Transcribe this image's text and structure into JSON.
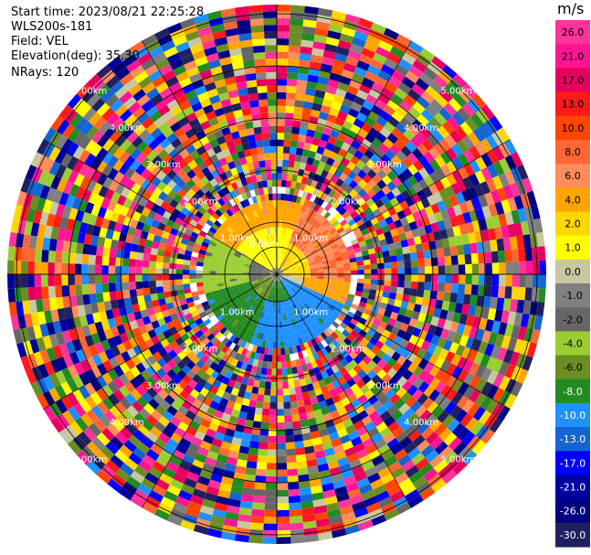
{
  "info": {
    "start_time": "Start time: 2023/08/21 22:25:28",
    "instrument": "WLS200s-181",
    "field": "Field: VEL",
    "elevation": "Elevation(deg): 35.30",
    "nrays": "NRays: 120"
  },
  "chart_data": {
    "type": "ppi-polar-heatmap",
    "field": "VEL",
    "unit": "m/s",
    "n_rays": 120,
    "elevation_deg": 35.3,
    "range_rings": [
      {
        "label": "0.0km"
      },
      {
        "label": "1.00km"
      },
      {
        "label": "2.00km"
      },
      {
        "label": "3.00km"
      },
      {
        "label": "4.00km"
      },
      {
        "label": "5.00km"
      }
    ],
    "colorbar": {
      "unit": "m/s",
      "ticks": [
        "26.0",
        "21.0",
        "17.0",
        "13.0",
        "10.0",
        "8.0",
        "6.0",
        "4.0",
        "2.0",
        "1.0",
        "0.0",
        "-1.0",
        "-2.0",
        "-4.0",
        "-6.0",
        "-8.0",
        "-10.0",
        "-13.0",
        "-17.0",
        "-21.0",
        "-26.0",
        "-30.0"
      ],
      "colors": [
        "#ff3399",
        "#ff1493",
        "#e6005c",
        "#ff1a1a",
        "#ff4500",
        "#ff6633",
        "#ff8c5a",
        "#ffa500",
        "#ffd700",
        "#ffff00",
        "#c8c8a0",
        "#808080",
        "#666666",
        "#9acd32",
        "#6b8e23",
        "#228b22",
        "#1e90ff",
        "#1464d2",
        "#0000ff",
        "#0000a0",
        "#000080",
        "#202060"
      ]
    },
    "wind_pattern": {
      "northeast_quadrant": "positive (orange 6 to 10 m/s)",
      "near_center_north": "positive (yellow 1 to 4 m/s)",
      "southwest_quadrant": "negative (green -2 to -6 m/s)",
      "south": "negative (blue -8 to -10 m/s)",
      "beyond_1.5km": "noise, all colors"
    }
  }
}
